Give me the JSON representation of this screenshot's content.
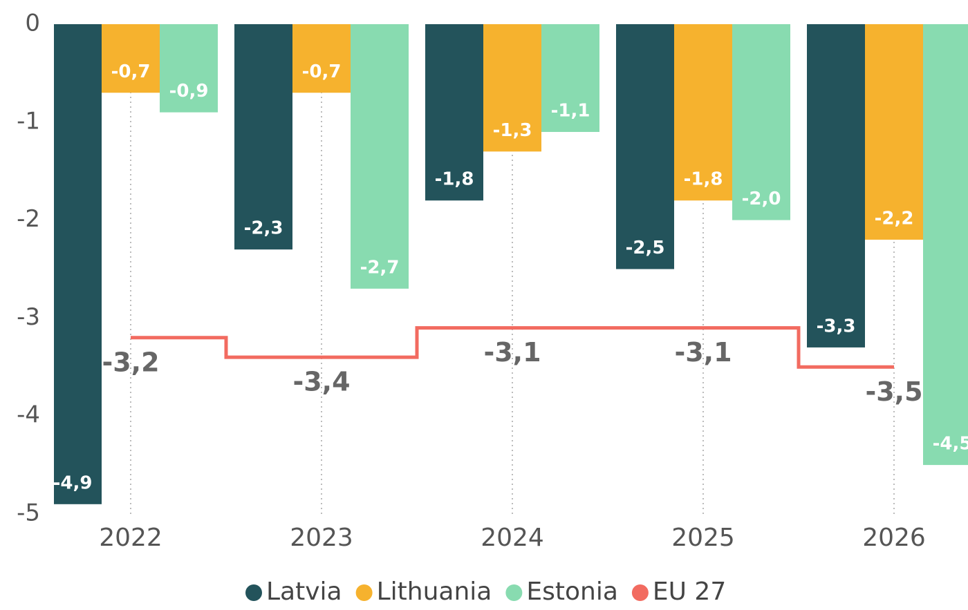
{
  "chart_data": {
    "type": "bar",
    "categories": [
      "2022",
      "2023",
      "2024",
      "2025",
      "2026"
    ],
    "series": [
      {
        "name": "Latvia",
        "color": "#23535b",
        "values": [
          -4.9,
          -2.3,
          -1.8,
          -2.5,
          -3.3
        ],
        "value_labels": [
          "-4,9",
          "-2,3",
          "-1,8",
          "-2,5",
          "-3,3"
        ]
      },
      {
        "name": "Lithuania",
        "color": "#f6b22e",
        "values": [
          -0.7,
          -0.7,
          -1.3,
          -1.8,
          -2.2
        ],
        "value_labels": [
          "-0,7",
          "-0,7",
          "-1,3",
          "-1,8",
          "-2,2"
        ]
      },
      {
        "name": "Estonia",
        "color": "#88dbb0",
        "values": [
          -0.9,
          -2.7,
          -1.1,
          -2.0,
          -4.5
        ],
        "value_labels": [
          "-0,9",
          "-2,7",
          "-1,1",
          "-2,0",
          "-4,5"
        ]
      },
      {
        "name": "EU 27",
        "color": "#f26b60",
        "type": "line",
        "step": true,
        "values": [
          -3.2,
          -3.4,
          -3.1,
          -3.1,
          -3.5
        ],
        "value_labels": [
          "-3,2",
          "-3,4",
          "-3,1",
          "-3,1",
          "-3,5"
        ]
      }
    ],
    "ylim": [
      -5,
      0
    ],
    "yticks": [
      0,
      -1,
      -2,
      -3,
      -4,
      -5
    ],
    "grid": true,
    "legend": "bottom"
  }
}
